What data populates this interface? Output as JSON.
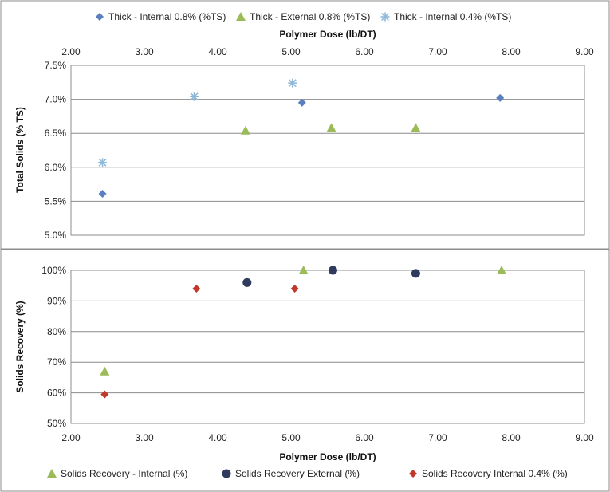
{
  "colors": {
    "thick_internal_08": "#5b7fbf",
    "thick_external_08": "#9bbb59",
    "thick_internal_04": "#8fb8d8",
    "sr_internal": "#9bbb59",
    "sr_external": "#2e3b5e",
    "sr_internal_04": "#c0392b"
  },
  "chart_data": [
    {
      "type": "scatter",
      "title": "",
      "xlabel": "Polymer Dose (lb/DT)",
      "ylabel": "Total Solids (% TS)",
      "xlim": [
        2.0,
        9.0
      ],
      "ylim": [
        5.0,
        7.5
      ],
      "x_ticks": [
        "2.00",
        "3.00",
        "4.00",
        "5.00",
        "6.00",
        "7.00",
        "8.00",
        "9.00"
      ],
      "y_ticks": [
        "5.0%",
        "5.5%",
        "6.0%",
        "6.5%",
        "7.0%",
        "7.5%"
      ],
      "x_axis_position": "top",
      "grid": true,
      "legend_position": "top",
      "series": [
        {
          "name": "Thick - Internal 0.8% (%TS)",
          "marker": "diamond",
          "color": "#5b7fbf",
          "points": [
            [
              2.43,
              5.61
            ],
            [
              5.15,
              6.95
            ],
            [
              7.85,
              7.02
            ]
          ]
        },
        {
          "name": "Thick - External 0.8% (%TS)",
          "marker": "triangle",
          "color": "#9bbb59",
          "points": [
            [
              4.38,
              6.54
            ],
            [
              5.55,
              6.58
            ],
            [
              6.7,
              6.58
            ]
          ]
        },
        {
          "name": "Thick - Internal 0.4% (%TS)",
          "marker": "star",
          "color": "#8fb8d8",
          "points": [
            [
              2.43,
              6.07
            ],
            [
              3.68,
              7.04
            ],
            [
              5.02,
              7.24
            ]
          ]
        }
      ]
    },
    {
      "type": "scatter",
      "title": "",
      "xlabel": "Polymer Dose (lb/DT)",
      "ylabel": "Solids Recovery (%)",
      "xlim": [
        2.0,
        9.0
      ],
      "ylim": [
        50,
        100
      ],
      "x_ticks": [
        "2.00",
        "3.00",
        "4.00",
        "5.00",
        "6.00",
        "7.00",
        "8.00",
        "9.00"
      ],
      "y_ticks": [
        "50%",
        "60%",
        "70%",
        "80%",
        "90%",
        "100%"
      ],
      "x_axis_position": "bottom",
      "grid": true,
      "legend_position": "bottom",
      "series": [
        {
          "name": "Solids Recovery - Internal (%)",
          "marker": "triangle",
          "color": "#9bbb59",
          "points": [
            [
              2.46,
              67
            ],
            [
              5.17,
              100
            ],
            [
              7.87,
              100
            ]
          ]
        },
        {
          "name": "Solids Recovery External (%)",
          "marker": "circle",
          "color": "#2e3b5e",
          "points": [
            [
              4.4,
              96
            ],
            [
              5.57,
              100
            ],
            [
              6.7,
              99
            ]
          ]
        },
        {
          "name": "Solids Recovery Internal 0.4% (%)",
          "marker": "diamond",
          "color": "#c0392b",
          "points": [
            [
              2.46,
              59.5
            ],
            [
              3.71,
              94
            ],
            [
              5.05,
              94
            ]
          ]
        }
      ]
    }
  ]
}
